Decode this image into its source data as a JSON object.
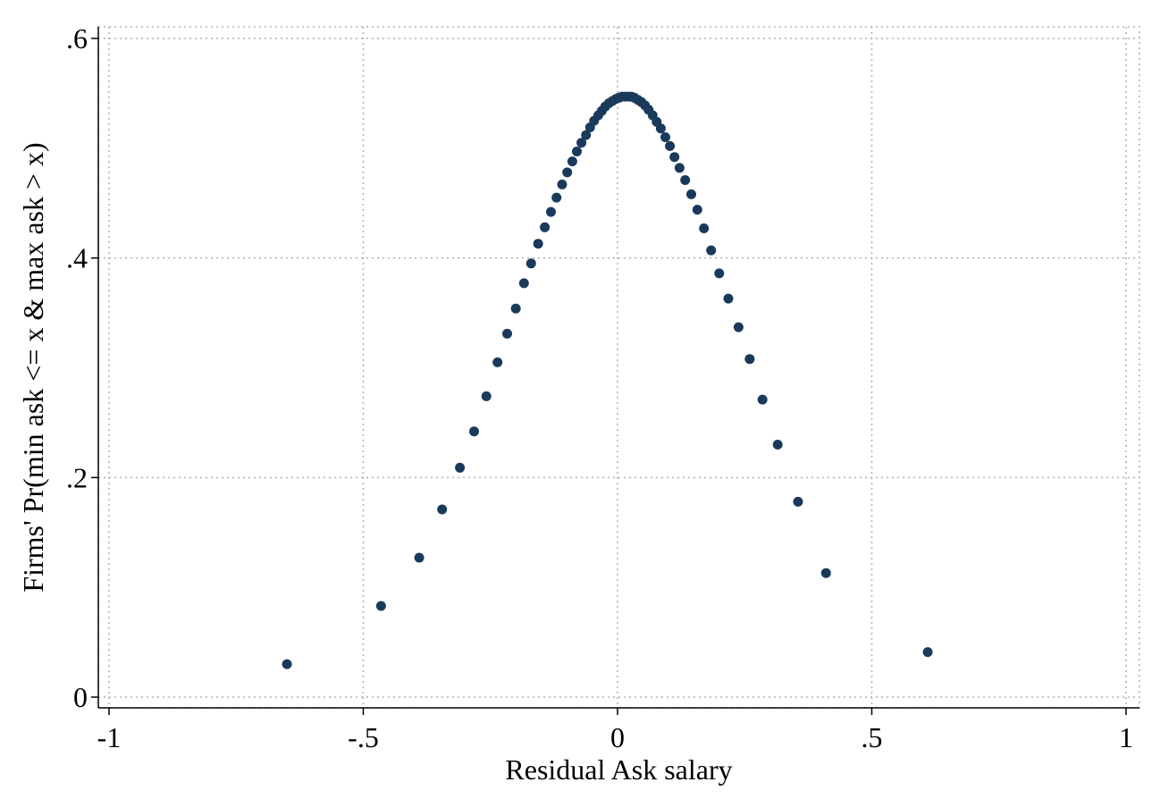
{
  "chart_data": {
    "type": "scatter",
    "title": "",
    "xlabel": "Residual Ask salary",
    "ylabel": "Firms' Pr(min ask <= x & max ask > x)",
    "xlim": [
      -1,
      1
    ],
    "ylim": [
      0,
      0.6
    ],
    "x_ticks": [
      -1,
      -0.5,
      0,
      0.5,
      1
    ],
    "x_tick_labels": [
      "-1",
      "-.5",
      "0",
      ".5",
      "1"
    ],
    "y_ticks": [
      0,
      0.2,
      0.4,
      0.6
    ],
    "y_tick_labels": [
      "0",
      ".2",
      ".4",
      ".6"
    ],
    "grid": true,
    "marker_color": "#1a3a5c",
    "points": [
      {
        "x": -0.65,
        "y": 0.03
      },
      {
        "x": -0.465,
        "y": 0.083
      },
      {
        "x": -0.39,
        "y": 0.127
      },
      {
        "x": -0.345,
        "y": 0.171
      },
      {
        "x": -0.31,
        "y": 0.209
      },
      {
        "x": -0.282,
        "y": 0.242
      },
      {
        "x": -0.258,
        "y": 0.274
      },
      {
        "x": -0.236,
        "y": 0.305
      },
      {
        "x": -0.217,
        "y": 0.331
      },
      {
        "x": -0.2,
        "y": 0.354
      },
      {
        "x": -0.184,
        "y": 0.377
      },
      {
        "x": -0.17,
        "y": 0.395
      },
      {
        "x": -0.156,
        "y": 0.413
      },
      {
        "x": -0.143,
        "y": 0.428
      },
      {
        "x": -0.131,
        "y": 0.442
      },
      {
        "x": -0.12,
        "y": 0.455
      },
      {
        "x": -0.109,
        "y": 0.467
      },
      {
        "x": -0.099,
        "y": 0.478
      },
      {
        "x": -0.089,
        "y": 0.488
      },
      {
        "x": -0.08,
        "y": 0.497
      },
      {
        "x": -0.071,
        "y": 0.505
      },
      {
        "x": -0.062,
        "y": 0.512
      },
      {
        "x": -0.054,
        "y": 0.519
      },
      {
        "x": -0.046,
        "y": 0.525
      },
      {
        "x": -0.038,
        "y": 0.53
      },
      {
        "x": -0.031,
        "y": 0.534
      },
      {
        "x": -0.024,
        "y": 0.538
      },
      {
        "x": -0.017,
        "y": 0.541
      },
      {
        "x": -0.01,
        "y": 0.543
      },
      {
        "x": -0.003,
        "y": 0.545
      },
      {
        "x": 0.003,
        "y": 0.546
      },
      {
        "x": 0.009,
        "y": 0.547
      },
      {
        "x": 0.015,
        "y": 0.547
      },
      {
        "x": 0.021,
        "y": 0.547
      },
      {
        "x": 0.027,
        "y": 0.547
      },
      {
        "x": 0.033,
        "y": 0.546
      },
      {
        "x": 0.04,
        "y": 0.544
      },
      {
        "x": 0.047,
        "y": 0.542
      },
      {
        "x": 0.054,
        "y": 0.539
      },
      {
        "x": 0.061,
        "y": 0.535
      },
      {
        "x": 0.069,
        "y": 0.53
      },
      {
        "x": 0.077,
        "y": 0.524
      },
      {
        "x": 0.085,
        "y": 0.518
      },
      {
        "x": 0.094,
        "y": 0.51
      },
      {
        "x": 0.103,
        "y": 0.502
      },
      {
        "x": 0.112,
        "y": 0.492
      },
      {
        "x": 0.122,
        "y": 0.482
      },
      {
        "x": 0.133,
        "y": 0.471
      },
      {
        "x": 0.145,
        "y": 0.458
      },
      {
        "x": 0.157,
        "y": 0.444
      },
      {
        "x": 0.17,
        "y": 0.427
      },
      {
        "x": 0.184,
        "y": 0.407
      },
      {
        "x": 0.2,
        "y": 0.386
      },
      {
        "x": 0.218,
        "y": 0.363
      },
      {
        "x": 0.238,
        "y": 0.337
      },
      {
        "x": 0.26,
        "y": 0.308
      },
      {
        "x": 0.285,
        "y": 0.271
      },
      {
        "x": 0.315,
        "y": 0.23
      },
      {
        "x": 0.355,
        "y": 0.178
      },
      {
        "x": 0.41,
        "y": 0.113
      },
      {
        "x": 0.61,
        "y": 0.041
      }
    ]
  }
}
